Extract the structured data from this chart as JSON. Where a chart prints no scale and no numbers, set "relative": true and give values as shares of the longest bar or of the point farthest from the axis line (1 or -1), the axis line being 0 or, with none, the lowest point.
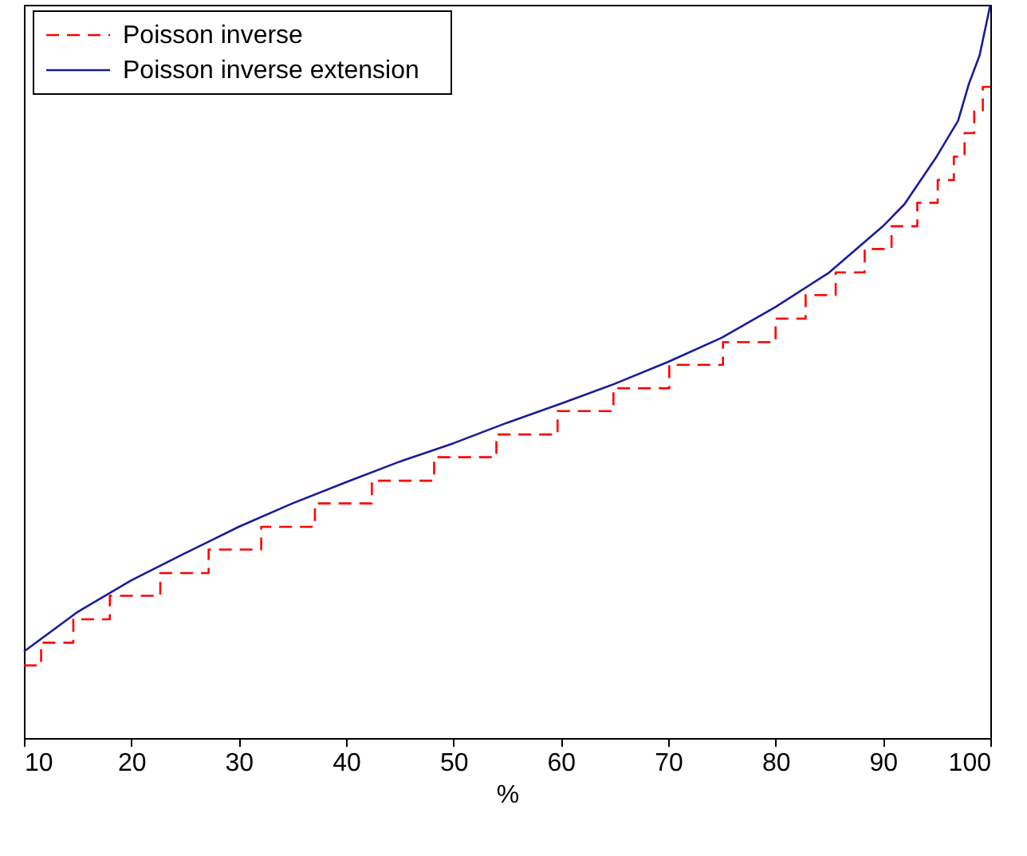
{
  "chart_data": {
    "type": "line",
    "xlabel": "%",
    "relative": true,
    "xlim": [
      10,
      100
    ],
    "xticks": [
      10,
      20,
      30,
      40,
      50,
      60,
      70,
      80,
      90,
      100
    ],
    "tick_labels": "x",
    "grid": false,
    "legend": "top left",
    "marker": "none",
    "series": [
      {
        "name": "Poisson inverse",
        "type": "step",
        "line_style": "dashed",
        "color": "#ff0000",
        "x": [
          10,
          11.6,
          14.6,
          18.0,
          22.7,
          27.2,
          32.1,
          37.1,
          42.4,
          48.2,
          54.0,
          59.7,
          64.9,
          70.1,
          75.1,
          80.0,
          82.8,
          85.6,
          88.3,
          90.8,
          93.2,
          95.1,
          96.6,
          97.6,
          98.5,
          99.3,
          100
        ],
        "values": [
          0.099,
          0.13,
          0.162,
          0.194,
          0.225,
          0.257,
          0.288,
          0.32,
          0.351,
          0.383,
          0.414,
          0.446,
          0.477,
          0.509,
          0.54,
          0.572,
          0.604,
          0.635,
          0.667,
          0.698,
          0.73,
          0.761,
          0.793,
          0.825,
          0.856,
          0.888,
          0.888
        ]
      },
      {
        "name": "Poisson inverse extension",
        "type": "line",
        "line_style": "solid",
        "color": "#1a1a9c",
        "x": [
          10,
          15,
          20,
          25,
          30,
          35,
          40,
          45,
          50,
          55,
          60,
          65,
          70,
          75,
          80,
          85,
          90,
          92,
          95,
          97,
          98,
          99,
          100
        ],
        "values": [
          0.118,
          0.172,
          0.215,
          0.252,
          0.288,
          0.32,
          0.349,
          0.377,
          0.402,
          0.43,
          0.456,
          0.483,
          0.513,
          0.546,
          0.588,
          0.635,
          0.698,
          0.728,
          0.793,
          0.842,
          0.892,
          0.931,
          1.0
        ]
      }
    ]
  }
}
